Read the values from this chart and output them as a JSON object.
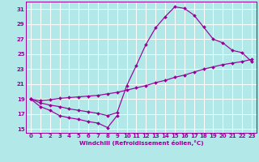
{
  "background_color": "#b2e8e8",
  "line_color": "#990099",
  "grid_color": "#ffffff",
  "xlim": [
    -0.5,
    23.5
  ],
  "ylim": [
    14.5,
    32
  ],
  "xticks": [
    0,
    1,
    2,
    3,
    4,
    5,
    6,
    7,
    8,
    9,
    10,
    11,
    12,
    13,
    14,
    15,
    16,
    17,
    18,
    19,
    20,
    21,
    22,
    23
  ],
  "yticks": [
    15,
    17,
    19,
    21,
    23,
    25,
    27,
    29,
    31
  ],
  "xlabel": "Windchill (Refroidissement éolien,°C)",
  "line1_x": [
    0,
    1,
    2,
    3,
    4,
    5,
    6,
    7,
    8,
    9
  ],
  "line1_y": [
    19.0,
    18.0,
    17.5,
    16.8,
    16.5,
    16.3,
    16.0,
    15.8,
    15.2,
    16.8
  ],
  "line2_x": [
    0,
    1,
    2,
    3,
    4,
    5,
    6,
    7,
    8,
    9,
    10,
    11,
    12,
    13,
    14,
    15,
    16,
    17,
    18,
    19,
    20,
    21,
    22,
    23
  ],
  "line2_y": [
    19.0,
    18.5,
    18.2,
    18.0,
    17.7,
    17.5,
    17.3,
    17.1,
    16.8,
    17.2,
    20.8,
    23.5,
    26.3,
    28.5,
    30.0,
    31.3,
    31.1,
    30.2,
    28.6,
    27.0,
    26.5,
    25.5,
    25.2,
    24.0
  ],
  "line3_x": [
    0,
    1,
    2,
    3,
    4,
    5,
    6,
    7,
    8,
    9,
    10,
    11,
    12,
    13,
    14,
    15,
    16,
    17,
    18,
    19,
    20,
    21,
    22,
    23
  ],
  "line3_y": [
    19.0,
    18.8,
    18.9,
    19.1,
    19.2,
    19.3,
    19.4,
    19.5,
    19.7,
    19.9,
    20.2,
    20.5,
    20.8,
    21.2,
    21.5,
    21.9,
    22.2,
    22.6,
    23.0,
    23.3,
    23.6,
    23.8,
    24.0,
    24.3
  ]
}
